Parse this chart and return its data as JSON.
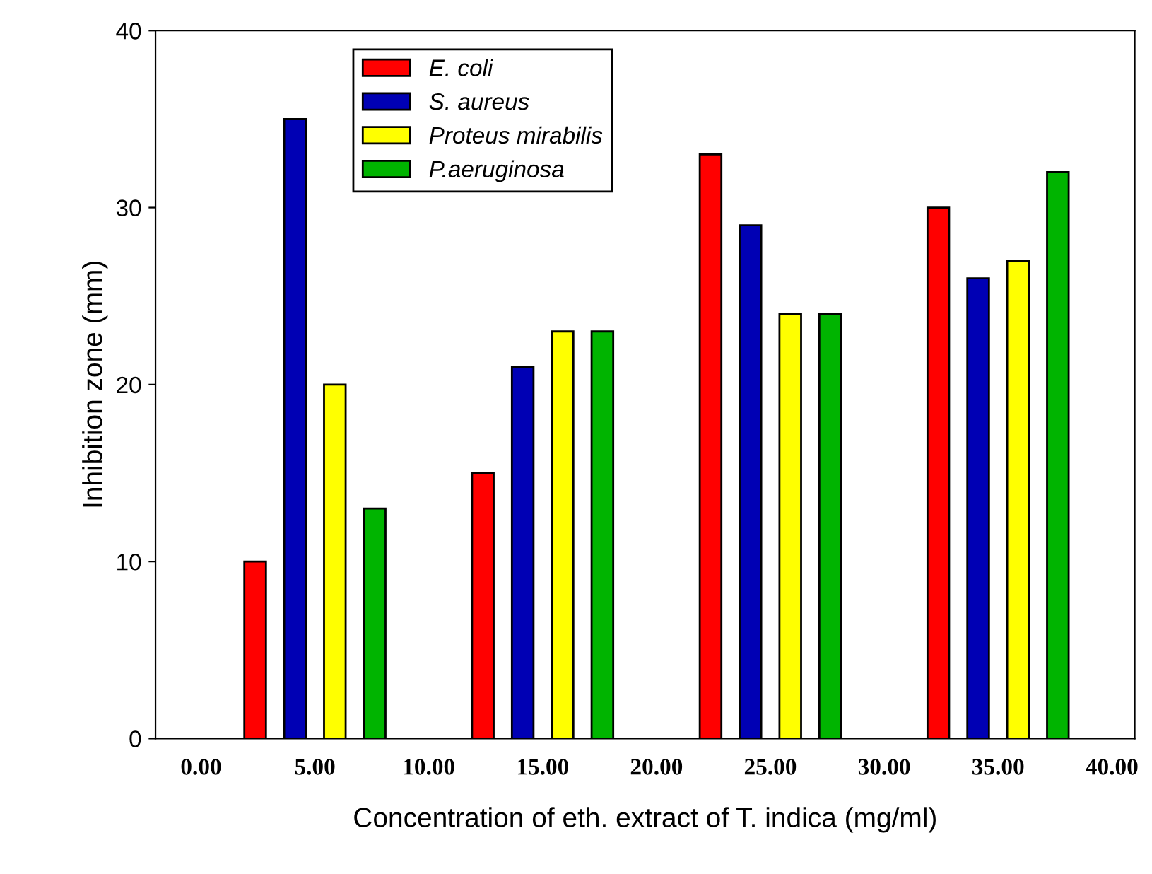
{
  "chart_data": {
    "type": "bar",
    "xlabel": "Concentration of eth. extract of T. indica (mg/ml)",
    "ylabel": "Inhibition zone (mm)",
    "x": [
      5,
      15,
      25,
      35
    ],
    "series": [
      {
        "name": "E. coli",
        "color": "#ff0000",
        "values": [
          10,
          15,
          33,
          30
        ]
      },
      {
        "name": "S. aureus",
        "color": "#0000b4",
        "values": [
          35,
          21,
          29,
          26
        ]
      },
      {
        "name": "Proteus mirabilis",
        "color": "#ffff00",
        "values": [
          20,
          23,
          24,
          27
        ]
      },
      {
        "name": "P.aeruginosa",
        "color": "#00b400",
        "values": [
          13,
          23,
          24,
          32
        ]
      }
    ],
    "xlim": [
      -2,
      41
    ],
    "xticks": [
      {
        "value": 0,
        "label": "0.00"
      },
      {
        "value": 5,
        "label": "5.00"
      },
      {
        "value": 10,
        "label": "10.00"
      },
      {
        "value": 15,
        "label": "15.00"
      },
      {
        "value": 20,
        "label": "20.00"
      },
      {
        "value": 25,
        "label": "25.00"
      },
      {
        "value": 30,
        "label": "30.00"
      },
      {
        "value": 35,
        "label": "35.00"
      },
      {
        "value": 40,
        "label": "40.00"
      }
    ],
    "ylim": [
      0,
      40
    ],
    "yticks": [
      0,
      10,
      20,
      30,
      40
    ],
    "grid": false,
    "legend": "top left"
  }
}
